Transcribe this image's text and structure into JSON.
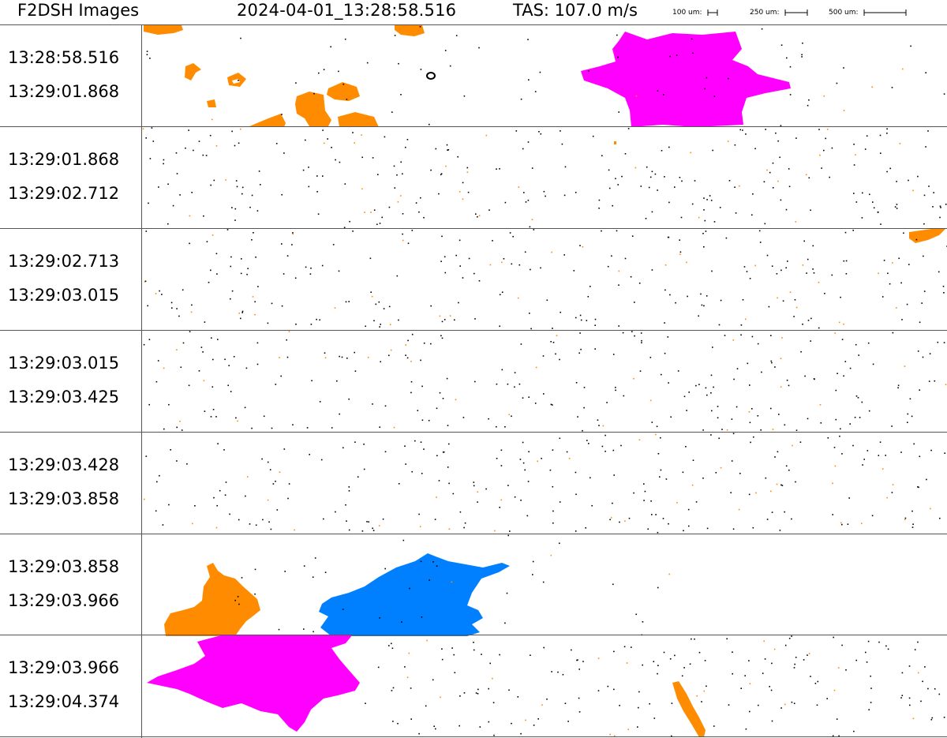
{
  "header": {
    "title": "F2DSH Images",
    "timestamp": "2024-04-01_13:28:58.516",
    "tas": "TAS: 107.0 m/s",
    "scales": [
      {
        "label": "100 um:"
      },
      {
        "label": "250 um:"
      },
      {
        "label": "500 um:"
      }
    ]
  },
  "strips": [
    {
      "start": "13:28:58.516",
      "end": "13:29:01.868"
    },
    {
      "start": "13:29:01.868",
      "end": "13:29:02.712"
    },
    {
      "start": "13:29:02.713",
      "end": "13:29:03.015"
    },
    {
      "start": "13:29:03.015",
      "end": "13:29:03.425"
    },
    {
      "start": "13:29:03.428",
      "end": "13:29:03.858"
    },
    {
      "start": "13:29:03.858",
      "end": "13:29:03.966"
    },
    {
      "start": "13:29:03.966",
      "end": "13:29:04.374"
    }
  ],
  "colors": {
    "orange": "#ff8c00",
    "magenta": "#ff00ff",
    "blue": "#0080ff",
    "black": "#000000",
    "divider": "#555555"
  }
}
